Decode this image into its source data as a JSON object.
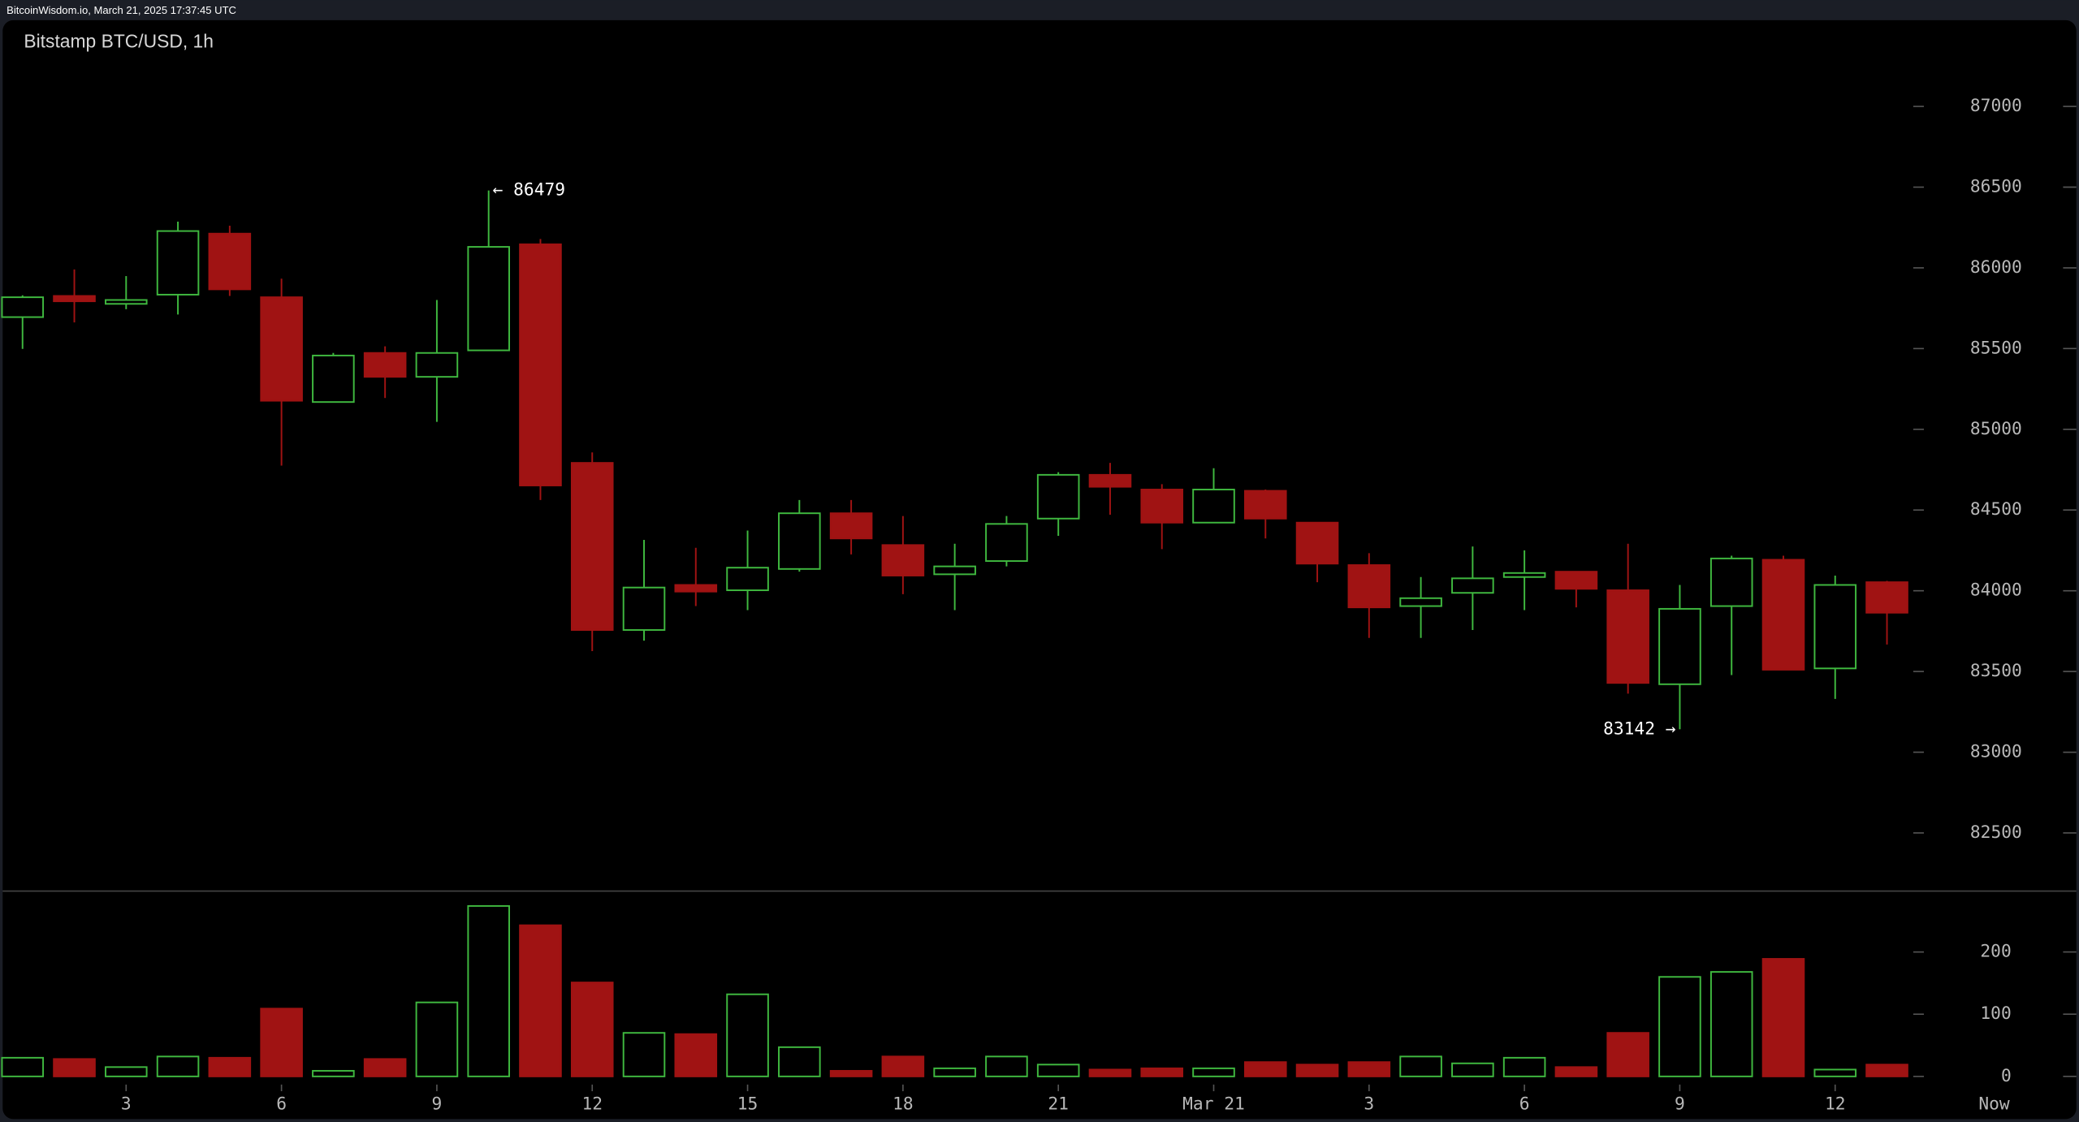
{
  "header": {
    "source": "BitcoinWisdom.io, March 21, 2025 17:37:45 UTC"
  },
  "chart_data": {
    "type": "candlestick",
    "title": "Bitstamp BTC/USD, 1h",
    "categories": [
      null,
      null,
      "3",
      null,
      null,
      "6",
      null,
      null,
      "9",
      null,
      null,
      "12",
      null,
      null,
      "15",
      null,
      null,
      "18",
      null,
      null,
      "21",
      null,
      null,
      "Mar 21",
      null,
      null,
      "3",
      null,
      null,
      "6",
      null,
      null,
      "9",
      null,
      null,
      "12",
      null
    ],
    "now_label": "Now",
    "open": [
      85695,
      85826,
      85777,
      85834,
      86212,
      85818,
      85169,
      85473,
      85325,
      85489,
      86146,
      84792,
      83757,
      84036,
      84003,
      84135,
      84480,
      84283,
      84102,
      84184,
      84447,
      84718,
      84627,
      84422,
      84619,
      84422,
      84159,
      83905,
      83987,
      84085,
      84118,
      84003,
      83421,
      83905,
      84192,
      83519,
      84053
    ],
    "high": [
      85830,
      85990,
      85949,
      86286,
      86261,
      85933,
      85473,
      85514,
      85801,
      86479,
      86179,
      84857,
      84315,
      84266,
      84373,
      84562,
      84562,
      84463,
      84291,
      84463,
      84734,
      84792,
      84660,
      84759,
      84627,
      84422,
      84233,
      84085,
      84274,
      84250,
      84118,
      84291,
      84036,
      84217,
      84217,
      84094,
      84061
    ],
    "low": [
      85498,
      85662,
      85744,
      85711,
      85826,
      84775,
      85169,
      85194,
      85046,
      85489,
      84562,
      83626,
      83691,
      83905,
      83880,
      84118,
      84225,
      83979,
      83880,
      84151,
      84340,
      84471,
      84258,
      84422,
      84324,
      84053,
      83708,
      83708,
      83757,
      83880,
      83897,
      83363,
      83142,
      83478,
      83511,
      83330,
      83667
    ],
    "close": [
      85818,
      85793,
      85801,
      86228,
      85867,
      85177,
      85457,
      85325,
      85473,
      86130,
      84652,
      83757,
      84020,
      83995,
      84143,
      84480,
      84324,
      84094,
      84151,
      84414,
      84718,
      84644,
      84422,
      84627,
      84447,
      84168,
      83897,
      83954,
      84077,
      84110,
      84012,
      83429,
      83888,
      84200,
      83511,
      84036,
      83864
    ],
    "volume": [
      30,
      28,
      15,
      32,
      30,
      109,
      9,
      28,
      119,
      274,
      243,
      151,
      70,
      68,
      132,
      47,
      9,
      32,
      13,
      32,
      19,
      11,
      13,
      13,
      23,
      19,
      23,
      32,
      21,
      30,
      15,
      70,
      160,
      168,
      189,
      11,
      19
    ],
    "up_color": "#3fb83f",
    "down_color": "#a01313",
    "ylim": [
      82140,
      87534
    ],
    "yticks": [
      82500,
      83000,
      83500,
      84000,
      84500,
      85000,
      85500,
      86000,
      86500,
      87000
    ],
    "volume_ylim": [
      -60,
      298
    ],
    "volume_yticks": [
      0,
      100,
      200
    ],
    "annotations": [
      {
        "text": "← 86479",
        "index": 9,
        "value": 86479,
        "side": "right"
      },
      {
        "text": "83142 →",
        "index": 32,
        "value": 83142,
        "side": "left"
      }
    ]
  }
}
